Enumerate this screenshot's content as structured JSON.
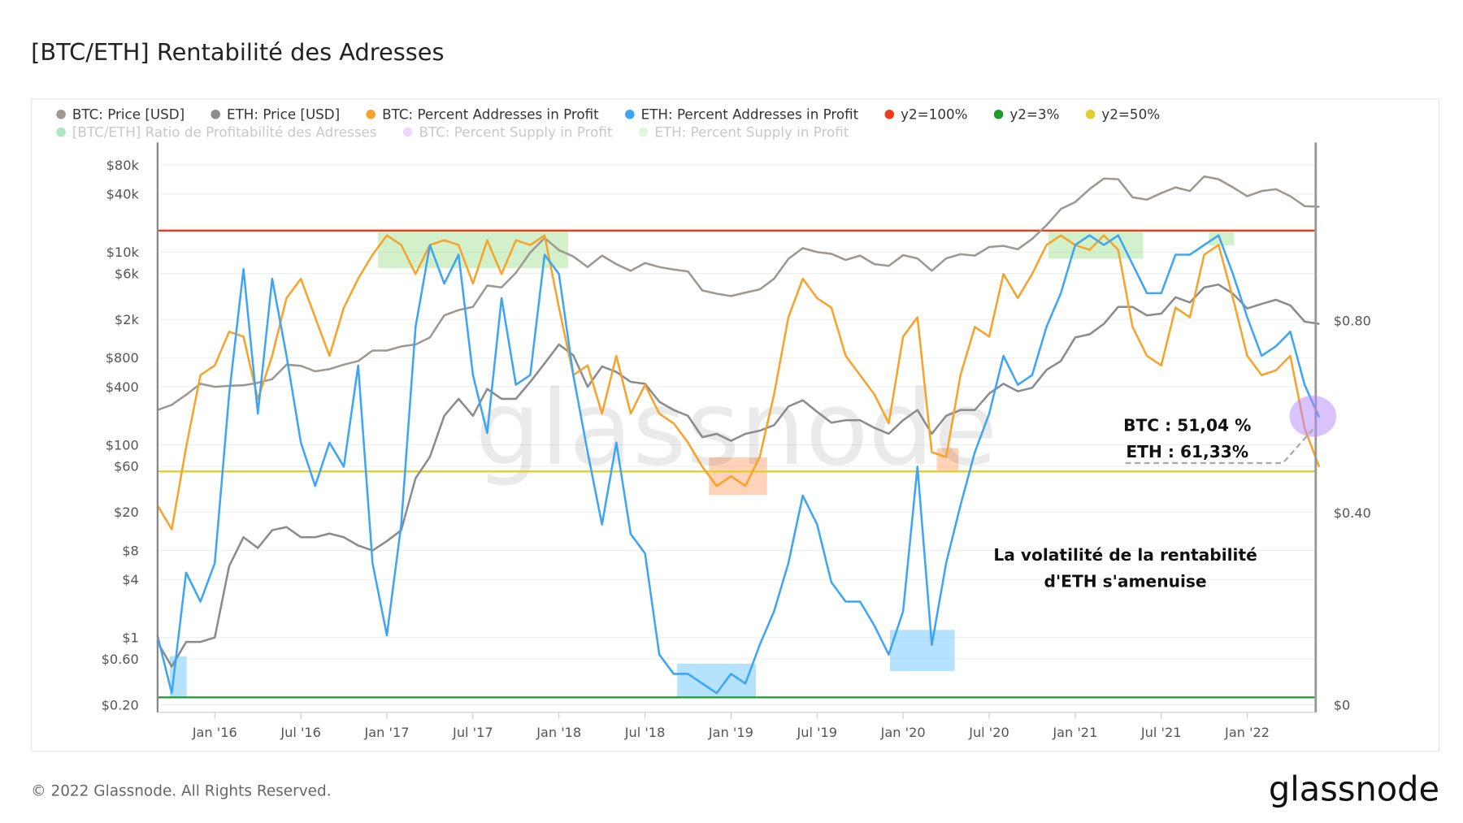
{
  "title": "[BTC/ETH] Rentabilité des Adresses",
  "footer": {
    "copyright": "© 2022 Glassnode. All Rights Reserved.",
    "logo": "glassnode"
  },
  "watermark": "glassnode",
  "legend": [
    {
      "label": "BTC: Price [USD]",
      "color": "#9e9893",
      "active": true
    },
    {
      "label": "ETH: Price [USD]",
      "color": "#8a8b8f",
      "active": true
    },
    {
      "label": "BTC: Percent Addresses in Profit",
      "color": "#f7a32a",
      "active": true
    },
    {
      "label": "ETH: Percent Addresses in Profit",
      "color": "#3da5f4",
      "active": true
    },
    {
      "label": "y2=100%",
      "color": "#ee3b1c",
      "active": true
    },
    {
      "label": "y2=3%",
      "color": "#1d9a2c",
      "active": true
    },
    {
      "label": "y2=50%",
      "color": "#e2cd2c",
      "active": true
    },
    {
      "label": "[BTC/ETH] Ratio de Profitabilité des Adresses",
      "color": "#5ccf86",
      "active": false
    },
    {
      "label": "BTC: Percent Supply in Profit",
      "color": "#dfb0f5",
      "active": false
    },
    {
      "label": "ETH: Percent Supply in Profit",
      "color": "#bdeeb3",
      "active": false
    }
  ],
  "annotations": {
    "btc_value": "BTC : 51,04 %",
    "eth_value": "ETH : 61,33%",
    "comment_line1": "La volatilité de la rentabilité",
    "comment_line2": "d'ETH s'amenuise"
  },
  "chart_data": {
    "type": "line",
    "title": "[BTC/ETH] Rentabilité des Adresses",
    "x_ticks": [
      "Jan '16",
      "Jul '16",
      "Jan '17",
      "Jul '17",
      "Jan '18",
      "Jul '18",
      "Jan '19",
      "Jul '19",
      "Jan '20",
      "Jul '20",
      "Jan '21",
      "Jul '21",
      "Jan '22"
    ],
    "y_left": {
      "scale": "log",
      "range": [
        0.2,
        80000
      ],
      "ticks": [
        "$0.20",
        "$0.60",
        "$1",
        "$4",
        "$8",
        "$20",
        "$60",
        "$100",
        "$400",
        "$800",
        "$2k",
        "$6k",
        "$10k",
        "$40k",
        "$80k"
      ],
      "tick_values": [
        0.2,
        0.6,
        1,
        4,
        8,
        20,
        60,
        100,
        400,
        800,
        2000,
        6000,
        10000,
        40000,
        80000
      ]
    },
    "y_right": {
      "scale": "linear",
      "range": [
        0,
        1
      ],
      "ticks": [
        "$0",
        "$0.40",
        "$0.80"
      ],
      "tick_values": [
        0,
        0.4,
        0.8
      ]
    },
    "y_percent_range": [
      0,
      100
    ],
    "grid": true,
    "legend_position": "top-left",
    "reference_lines": [
      {
        "name": "y2=100%",
        "value": 100,
        "color": "#ee3b1c"
      },
      {
        "name": "y2=50%",
        "value": 50,
        "color": "#e2cd2c"
      },
      {
        "name": "y2=3%",
        "value": 3,
        "color": "#1d9a2c"
      }
    ],
    "dates": [
      "2015-09",
      "2015-10",
      "2015-11",
      "2015-12",
      "2016-01",
      "2016-02",
      "2016-03",
      "2016-04",
      "2016-05",
      "2016-06",
      "2016-07",
      "2016-08",
      "2016-09",
      "2016-10",
      "2016-11",
      "2016-12",
      "2017-01",
      "2017-02",
      "2017-03",
      "2017-04",
      "2017-05",
      "2017-06",
      "2017-07",
      "2017-08",
      "2017-09",
      "2017-10",
      "2017-11",
      "2017-12",
      "2018-01",
      "2018-02",
      "2018-03",
      "2018-04",
      "2018-05",
      "2018-06",
      "2018-07",
      "2018-08",
      "2018-09",
      "2018-10",
      "2018-11",
      "2018-12",
      "2019-01",
      "2019-02",
      "2019-03",
      "2019-04",
      "2019-05",
      "2019-06",
      "2019-07",
      "2019-08",
      "2019-09",
      "2019-10",
      "2019-11",
      "2019-12",
      "2020-01",
      "2020-02",
      "2020-03",
      "2020-04",
      "2020-05",
      "2020-06",
      "2020-07",
      "2020-08",
      "2020-09",
      "2020-10",
      "2020-11",
      "2020-12",
      "2021-01",
      "2021-02",
      "2021-03",
      "2021-04",
      "2021-05",
      "2021-06",
      "2021-07",
      "2021-08",
      "2021-09",
      "2021-10",
      "2021-11",
      "2021-12",
      "2022-01",
      "2022-02",
      "2022-03",
      "2022-04",
      "2022-05",
      "2022-06"
    ],
    "series": [
      {
        "name": "BTC: Price [USD]",
        "axis": "left",
        "color": "#9e9893",
        "values": [
          230,
          260,
          330,
          430,
          400,
          410,
          415,
          440,
          480,
          680,
          660,
          580,
          610,
          680,
          740,
          950,
          950,
          1050,
          1100,
          1300,
          2200,
          2500,
          2700,
          4500,
          4300,
          6100,
          9900,
          14000,
          10500,
          9000,
          7000,
          9200,
          7500,
          6400,
          7700,
          7000,
          6600,
          6300,
          4000,
          3700,
          3500,
          3800,
          4100,
          5300,
          8500,
          11000,
          10000,
          9600,
          8300,
          9200,
          7500,
          7200,
          9300,
          8600,
          6400,
          8600,
          9500,
          9200,
          11300,
          11600,
          10700,
          13700,
          19000,
          28000,
          33000,
          45000,
          58000,
          57000,
          37000,
          35000,
          41000,
          47000,
          43000,
          61000,
          57000,
          47000,
          38000,
          43000,
          45000,
          38000,
          30000,
          29500
        ]
      },
      {
        "name": "ETH: Price [USD]",
        "axis": "left",
        "color": "#8a8b8f",
        "values": [
          0.9,
          0.5,
          0.9,
          0.9,
          1.0,
          5.5,
          11,
          8.5,
          13,
          14,
          11,
          11,
          12,
          11,
          9,
          8,
          10,
          13,
          45,
          75,
          200,
          300,
          200,
          380,
          300,
          300,
          450,
          700,
          1100,
          850,
          400,
          650,
          570,
          450,
          430,
          280,
          230,
          200,
          120,
          130,
          110,
          130,
          140,
          160,
          250,
          290,
          220,
          170,
          180,
          180,
          150,
          130,
          180,
          230,
          130,
          200,
          230,
          230,
          340,
          430,
          360,
          390,
          600,
          740,
          1300,
          1400,
          1800,
          2700,
          2700,
          2200,
          2300,
          3400,
          3000,
          4300,
          4600,
          3700,
          2600,
          2900,
          3200,
          2800,
          1900,
          1800
        ]
      },
      {
        "name": "BTC: Percent Addresses in Profit",
        "axis": "percent",
        "color": "#f7a32a",
        "values": [
          43,
          38,
          55,
          70,
          72,
          79,
          78,
          65,
          74,
          86,
          90,
          82,
          74,
          84,
          90,
          95,
          99,
          97,
          91,
          97,
          98,
          97,
          89,
          98,
          91,
          98,
          97,
          99,
          84,
          70,
          72,
          62,
          74,
          62,
          68,
          62,
          60,
          56,
          51,
          47,
          49,
          47,
          53,
          66,
          82,
          90,
          86,
          84,
          74,
          70,
          66,
          60,
          78,
          82,
          54,
          53,
          70,
          80,
          78,
          91,
          86,
          91,
          97,
          99,
          97,
          96,
          99,
          96,
          80,
          74,
          72,
          84,
          82,
          95,
          97,
          86,
          74,
          70,
          71,
          74,
          59,
          51.04
        ]
      },
      {
        "name": "ETH: Percent Addresses in Profit",
        "axis": "percent",
        "color": "#3da5f4",
        "values": [
          16,
          4,
          29,
          23,
          31,
          66,
          92,
          62,
          90,
          74,
          56,
          47,
          56,
          51,
          72,
          31,
          16,
          39,
          80,
          97,
          89,
          95,
          70,
          58,
          86,
          68,
          70,
          95,
          91,
          70,
          54,
          39,
          56,
          37,
          33,
          12,
          8,
          8,
          6,
          4,
          8,
          6,
          14,
          21,
          31,
          45,
          39,
          27,
          23,
          23,
          18,
          12,
          21,
          51,
          14,
          31,
          43,
          54,
          62,
          74,
          68,
          70,
          80,
          87,
          97,
          99,
          97,
          99,
          93,
          87,
          87,
          95,
          95,
          97,
          99,
          91,
          82,
          74,
          76,
          79,
          68,
          61.33
        ]
      }
    ]
  }
}
